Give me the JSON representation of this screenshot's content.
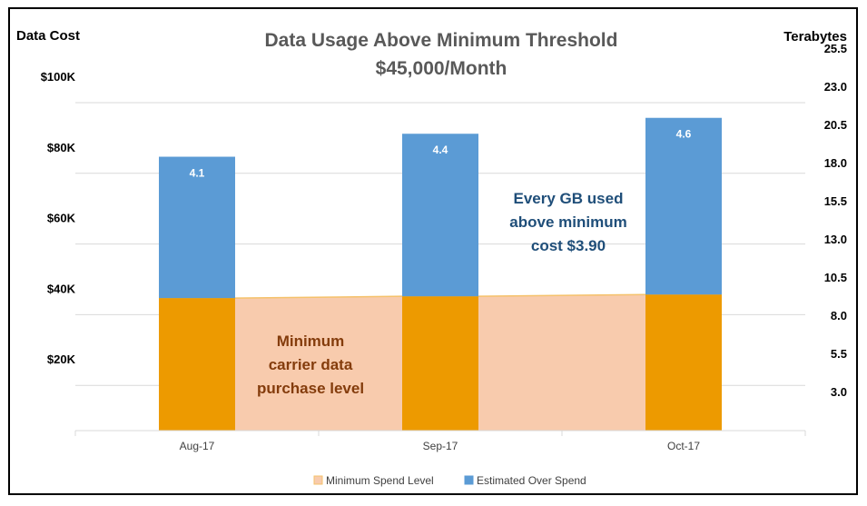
{
  "chart_data": {
    "type": "bar",
    "title": "Data Usage Above Minimum Threshold",
    "subtitle": "$45,000/Month",
    "ylabel_left": "Data Cost",
    "ylabel_right": "Terabytes",
    "categories": [
      "Aug-17",
      "Sep-17",
      "Oct-17"
    ],
    "ylim": [
      0,
      100000
    ],
    "y_ticks": [
      {
        "value": 20000,
        "label": "$20K"
      },
      {
        "value": 40000,
        "label": "$40K"
      },
      {
        "value": 60000,
        "label": "$60K"
      },
      {
        "value": 80000,
        "label": "$80K"
      },
      {
        "value": 100000,
        "label": "$100K"
      }
    ],
    "y2_ticks": [
      {
        "value": 10800,
        "label": "3.0"
      },
      {
        "value": 21600,
        "label": "5.5"
      },
      {
        "value": 32400,
        "label": "8.0"
      },
      {
        "value": 43200,
        "label": "10.5"
      },
      {
        "value": 54000,
        "label": "13.0"
      },
      {
        "value": 64800,
        "label": "15.5"
      },
      {
        "value": 75600,
        "label": "18.0"
      },
      {
        "value": 86400,
        "label": "20.5"
      },
      {
        "value": 97200,
        "label": "23.0"
      },
      {
        "value": 108000,
        "label": "25.5"
      }
    ],
    "series": [
      {
        "name": "Minimum Spend Level",
        "type": "area+bar",
        "values": [
          37500,
          38000,
          38500
        ],
        "color": "#f8cbad",
        "bar_color": "#ed9a00"
      },
      {
        "name": "Estimated Over Spend",
        "type": "bar",
        "values": [
          40000,
          46000,
          50000
        ],
        "labels": [
          "4.1",
          "4.4",
          "4.6"
        ],
        "color": "#5b9bd5"
      }
    ],
    "annotations": [
      {
        "lines": [
          "Every GB used",
          "above minimum",
          "cost $3.90"
        ],
        "color": "#1f4e79"
      },
      {
        "lines": [
          "Minimum",
          "carrier data",
          "purchase level"
        ],
        "color": "#843c0c"
      }
    ],
    "grid": true,
    "legend_position": "bottom"
  }
}
